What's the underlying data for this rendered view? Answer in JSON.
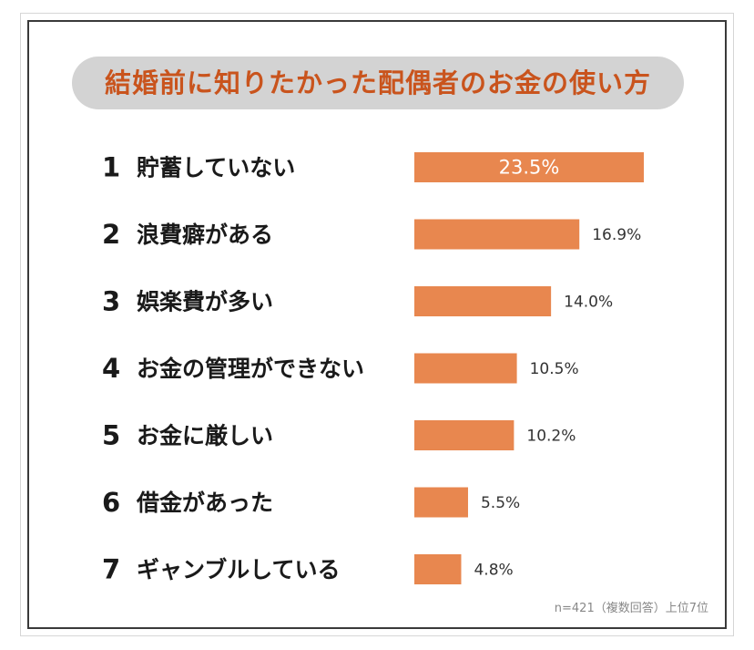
{
  "chart_data": {
    "type": "bar",
    "orientation": "horizontal",
    "title": "結婚前に知りたかった配偶者のお金の使い方",
    "ranks": [
      "1",
      "2",
      "3",
      "4",
      "5",
      "6",
      "7"
    ],
    "categories": [
      "貯蓄していない",
      "浪費癖がある",
      "娯楽費が多い",
      "お金の管理ができない",
      "お金に厳しい",
      "借金があった",
      "ギャンブルしている"
    ],
    "values": [
      23.5,
      16.9,
      14.0,
      10.5,
      10.2,
      5.5,
      4.8
    ],
    "value_labels": [
      "23.5%",
      "16.9%",
      "14.0%",
      "10.5%",
      "10.2%",
      "5.5%",
      "4.8%"
    ],
    "unit": "%",
    "bar_color": "#e8874f",
    "title_color": "#c9541d",
    "grid": false,
    "legend": "none",
    "footnote": "n=421（複数回答）上位7位"
  }
}
